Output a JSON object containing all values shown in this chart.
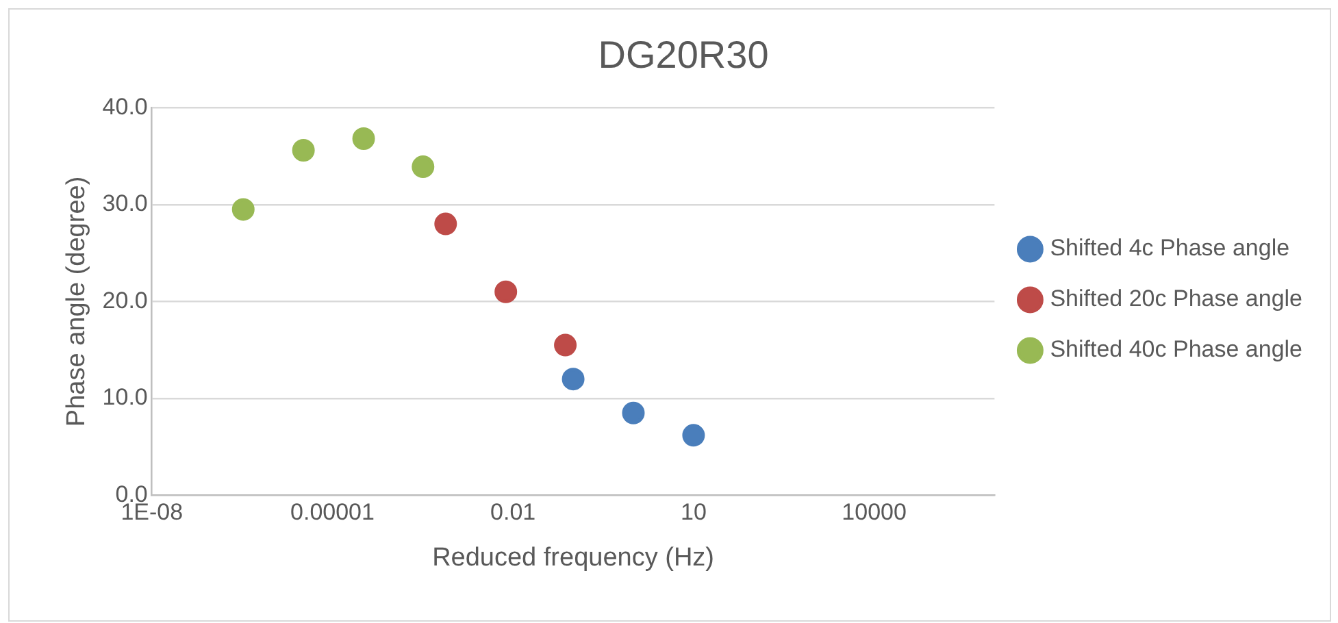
{
  "chart_data": {
    "type": "scatter",
    "title": "DG20R30",
    "xlabel": "Reduced frequency (Hz)",
    "ylabel": "Phase angle (degree)",
    "series": [
      {
        "name": "Shifted 4c Phase angle",
        "color": "#4a7ebb",
        "x": [
          0.1,
          1.0,
          10
        ],
        "values": [
          12.0,
          8.5,
          6.2
        ]
      },
      {
        "name": "Shifted 20c Phase angle",
        "color": "#be4b48",
        "x": [
          0.00076,
          0.0076,
          0.074
        ],
        "values": [
          28.0,
          21.0,
          15.5
        ]
      },
      {
        "name": "Shifted 40c Phase angle",
        "color": "#98b954",
        "x": [
          3.3e-07,
          3.3e-06,
          3.3e-05,
          0.00032
        ],
        "values": [
          29.5,
          35.6,
          36.8,
          33.9
        ]
      }
    ],
    "log": "x",
    "xlim": [
      1e-08,
      1000000.0
    ],
    "xticks": [
      {
        "value": 1e-08,
        "label": "1E-08"
      },
      {
        "value": 1e-05,
        "label": "0.00001"
      },
      0.01,
      10,
      10000
    ],
    "ylim": [
      0,
      40
    ],
    "yticks": [
      {
        "value": 0,
        "label": "0.0"
      },
      {
        "value": 10,
        "label": "10.0"
      },
      {
        "value": 20,
        "label": "20.0"
      },
      {
        "value": 30,
        "label": "30.0"
      },
      {
        "value": 40,
        "label": "40.0"
      }
    ],
    "grid": "y",
    "legend": "right",
    "marker": "circle"
  }
}
